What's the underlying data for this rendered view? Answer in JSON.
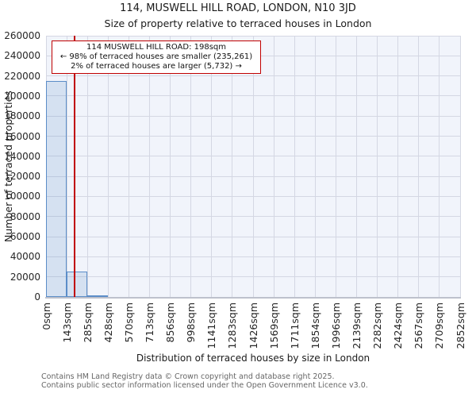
{
  "chart_data": {
    "type": "bar",
    "title": "114, MUSWELL HILL ROAD, LONDON, N10 3JD",
    "subtitle": "Size of property relative to terraced houses in London",
    "xlabel": "Distribution of terraced houses by size in London",
    "ylabel": "Number of terraced properties",
    "bin_labels": [
      "0sqm",
      "143sqm",
      "285sqm",
      "428sqm",
      "570sqm",
      "713sqm",
      "856sqm",
      "998sqm",
      "1141sqm",
      "1283sqm",
      "1426sqm",
      "1569sqm",
      "1711sqm",
      "1854sqm",
      "1996sqm",
      "2139sqm",
      "2282sqm",
      "2424sqm",
      "2567sqm",
      "2709sqm",
      "2852sqm"
    ],
    "bin_width_sqm": 143,
    "values": [
      215000,
      25000,
      1300,
      0,
      0,
      0,
      0,
      0,
      0,
      0,
      0,
      0,
      0,
      0,
      0,
      0,
      0,
      0,
      0,
      0
    ],
    "y_ticks": [
      0,
      20000,
      40000,
      60000,
      80000,
      100000,
      120000,
      140000,
      160000,
      180000,
      200000,
      220000,
      240000,
      260000
    ],
    "ylim": [
      0,
      260000
    ],
    "xlim_sqm": [
      0,
      2852
    ],
    "grid": true,
    "legend": "none",
    "marker_sqm": 198,
    "annotation_lines": [
      "114 MUSWELL HILL ROAD: 198sqm",
      "← 98% of terraced houses are smaller (235,261)",
      "2% of terraced houses are larger (5,732) →"
    ],
    "colors": {
      "bar_fill": "rgba(91,141,200,0.18)",
      "bar_edge": "#5b8dc8",
      "marker": "#c00000",
      "annotation_border": "#c00000",
      "plot_bg": "#f1f4fb",
      "grid": "#d4d7e3",
      "figure_bg": "#ffffff"
    }
  },
  "footer": {
    "lines": [
      "Contains HM Land Registry data © Crown copyright and database right 2025.",
      "Contains public sector information licensed under the Open Government Licence v3.0."
    ]
  }
}
